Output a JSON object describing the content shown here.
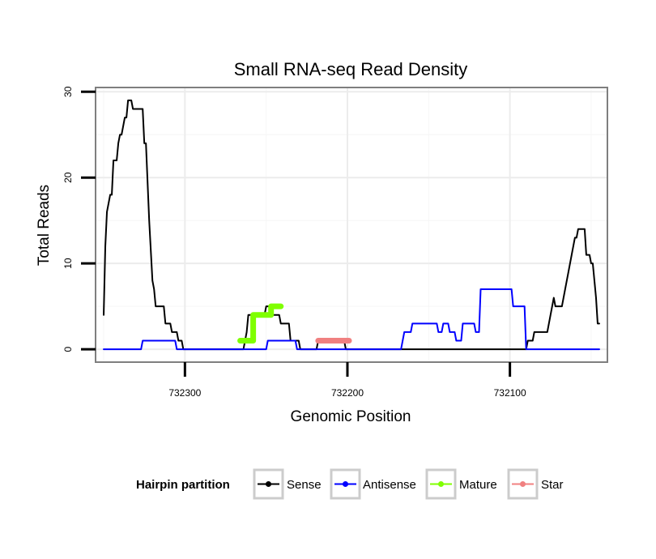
{
  "chart_data": {
    "type": "line",
    "title": "Small RNA-seq Read Density",
    "xlabel": "Genomic Position",
    "ylabel": "Total Reads",
    "x_reversed": true,
    "xlim": [
      732355,
      732040
    ],
    "ylim": [
      -1.5,
      30.5
    ],
    "x_ticks": [
      732300,
      732200,
      732100
    ],
    "x_tick_labels": [
      "732300",
      "732200",
      "732100"
    ],
    "y_ticks": [
      0,
      10,
      20,
      30
    ],
    "y_tick_labels": [
      "0",
      "10",
      "20",
      "30"
    ],
    "grid": true,
    "legend": {
      "title": "Hairpin partition",
      "position": "bottom",
      "entries": [
        "Sense",
        "Antisense",
        "Mature",
        "Star"
      ]
    },
    "series": [
      {
        "name": "Sense",
        "color": "#000000",
        "stroke": 2,
        "points": [
          [
            732350,
            4
          ],
          [
            732349,
            12
          ],
          [
            732348,
            16
          ],
          [
            732347,
            17
          ],
          [
            732346,
            18
          ],
          [
            732345,
            18
          ],
          [
            732344,
            22
          ],
          [
            732342,
            22
          ],
          [
            732341,
            24
          ],
          [
            732340,
            25
          ],
          [
            732339,
            25
          ],
          [
            732338,
            26
          ],
          [
            732337,
            27
          ],
          [
            732336,
            27
          ],
          [
            732335,
            29
          ],
          [
            732333,
            29
          ],
          [
            732332,
            28
          ],
          [
            732326,
            28
          ],
          [
            732325,
            24
          ],
          [
            732324,
            24
          ],
          [
            732322,
            15
          ],
          [
            732320,
            8
          ],
          [
            732319,
            7
          ],
          [
            732318,
            5
          ],
          [
            732313,
            5
          ],
          [
            732312,
            3
          ],
          [
            732309,
            3
          ],
          [
            732308,
            2
          ],
          [
            732305,
            2
          ],
          [
            732304,
            1
          ],
          [
            732302,
            1
          ],
          [
            732301,
            0
          ],
          [
            732264,
            0
          ],
          [
            732263,
            1
          ],
          [
            732262,
            2
          ],
          [
            732261,
            4
          ],
          [
            732251,
            4
          ],
          [
            732250,
            5
          ],
          [
            732247,
            5
          ],
          [
            732246,
            4
          ],
          [
            732242,
            4
          ],
          [
            732241,
            3
          ],
          [
            732236,
            3
          ],
          [
            732235,
            1
          ],
          [
            732230,
            1
          ],
          [
            732229,
            0
          ],
          [
            732219,
            0
          ],
          [
            732218,
            1
          ],
          [
            732202,
            1
          ],
          [
            732201,
            0
          ],
          [
            732090,
            0
          ],
          [
            732089,
            1
          ],
          [
            732086,
            1
          ],
          [
            732085,
            2
          ],
          [
            732077,
            2
          ],
          [
            732076,
            3
          ],
          [
            732075,
            4
          ],
          [
            732073,
            6
          ],
          [
            732072,
            5
          ],
          [
            732068,
            5
          ],
          [
            732066,
            7
          ],
          [
            732064,
            9
          ],
          [
            732062,
            11
          ],
          [
            732061,
            12
          ],
          [
            732060,
            13
          ],
          [
            732059,
            13
          ],
          [
            732058,
            14
          ],
          [
            732054,
            14
          ],
          [
            732053,
            11
          ],
          [
            732051,
            11
          ],
          [
            732050,
            10
          ],
          [
            732049,
            10
          ],
          [
            732048,
            8
          ],
          [
            732047,
            6
          ],
          [
            732046,
            3
          ],
          [
            732045,
            3
          ]
        ]
      },
      {
        "name": "Antisense",
        "color": "#0000ff",
        "stroke": 2,
        "points": [
          [
            732350,
            0
          ],
          [
            732327,
            0
          ],
          [
            732326,
            1
          ],
          [
            732306,
            1
          ],
          [
            732305,
            0
          ],
          [
            732250,
            0
          ],
          [
            732249,
            1
          ],
          [
            732232,
            1
          ],
          [
            732231,
            0
          ],
          [
            732167,
            0
          ],
          [
            732165,
            2
          ],
          [
            732161,
            2
          ],
          [
            732160,
            3
          ],
          [
            732145,
            3
          ],
          [
            732144,
            2
          ],
          [
            732142,
            2
          ],
          [
            732141,
            3
          ],
          [
            732138,
            3
          ],
          [
            732137,
            2
          ],
          [
            732134,
            2
          ],
          [
            732133,
            1
          ],
          [
            732130,
            1
          ],
          [
            732129,
            3
          ],
          [
            732122,
            3
          ],
          [
            732121,
            2
          ],
          [
            732119,
            2
          ],
          [
            732118,
            7
          ],
          [
            732099,
            7
          ],
          [
            732098,
            5
          ],
          [
            732091,
            5
          ],
          [
            732090,
            0
          ],
          [
            732045,
            0
          ]
        ]
      },
      {
        "name": "Mature",
        "color": "#7fff00",
        "stroke": 7,
        "points": [
          [
            732266,
            1
          ],
          [
            732258,
            1
          ],
          [
            732258,
            4
          ],
          [
            732247,
            4
          ],
          [
            732247,
            5
          ],
          [
            732241,
            5
          ]
        ]
      },
      {
        "name": "Star",
        "color": "#f08080",
        "stroke": 7,
        "points": [
          [
            732218,
            1
          ],
          [
            732199,
            1
          ]
        ]
      }
    ]
  }
}
